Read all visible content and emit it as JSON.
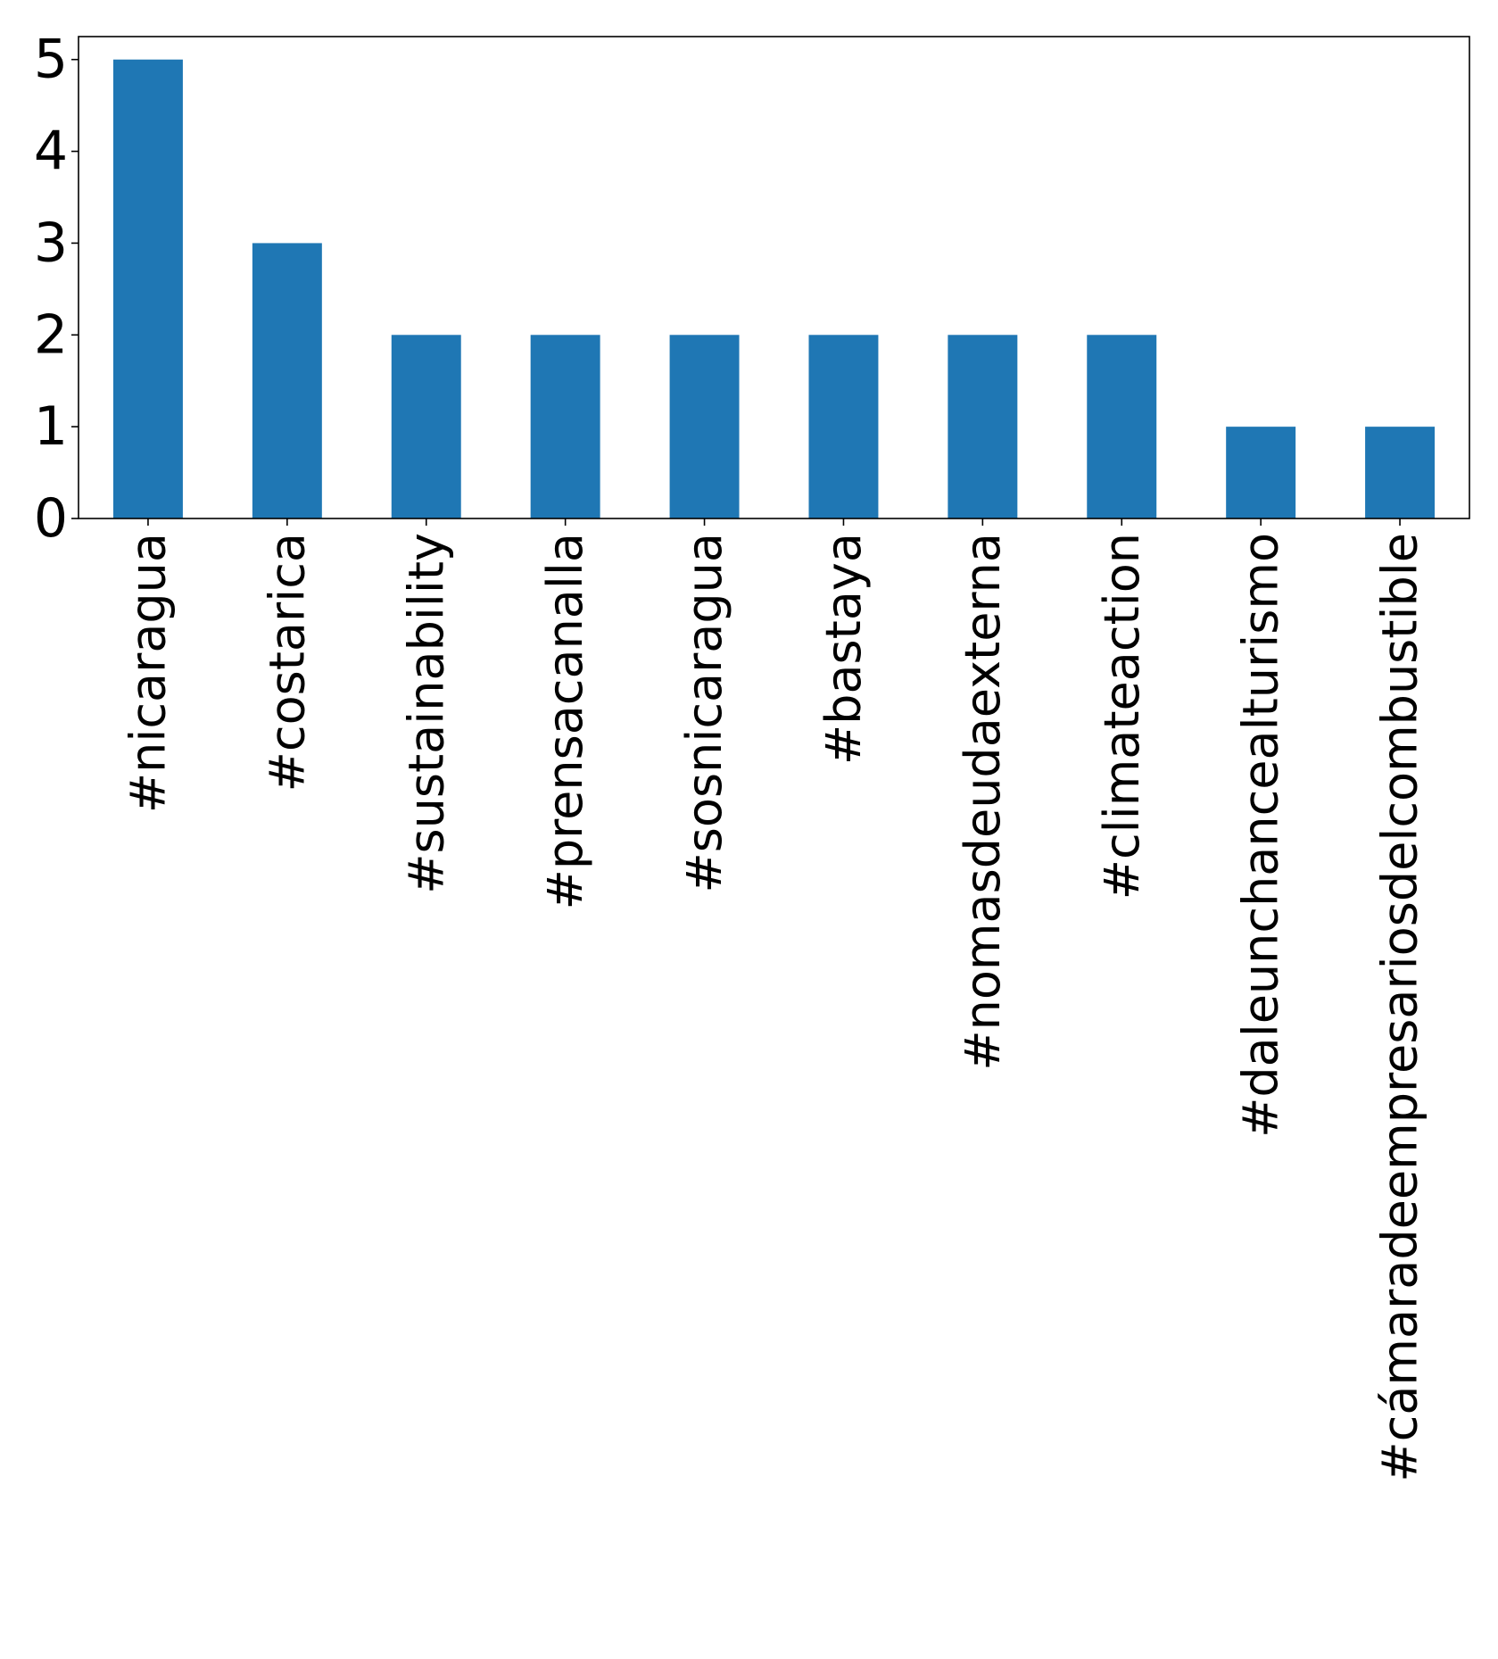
{
  "chart_data": {
    "type": "bar",
    "categories": [
      "#nicaragua",
      "#costarica",
      "#sustainability",
      "#prensacanalla",
      "#sosnicaragua",
      "#bastaya",
      "#nomasdeudaexterna",
      "#climateaction",
      "#daleunchancealturismo",
      "#cámaradeempresariosdelcombustible"
    ],
    "values": [
      5,
      3,
      2,
      2,
      2,
      2,
      2,
      2,
      1,
      1
    ],
    "yticks": [
      0,
      1,
      2,
      3,
      4,
      5
    ],
    "ylim": [
      0,
      5.25
    ],
    "title": "",
    "xlabel": "",
    "ylabel": "",
    "grid": false,
    "legend": false,
    "bar_color": "#1f77b4"
  }
}
